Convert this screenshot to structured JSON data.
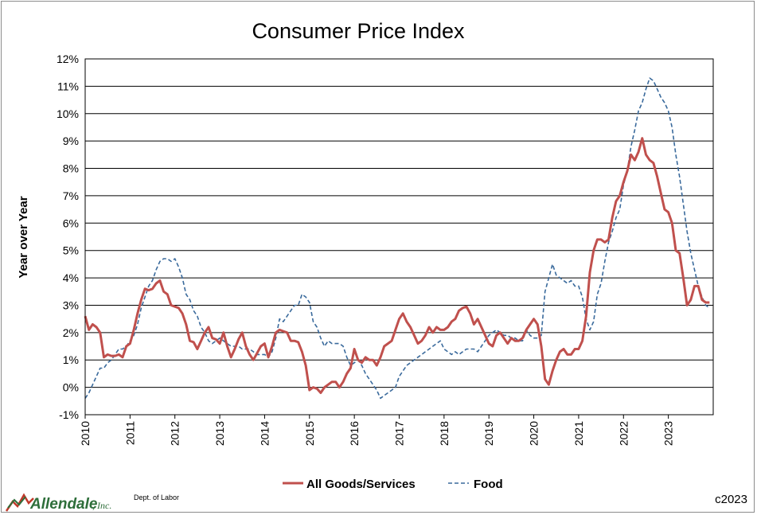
{
  "chart_data": {
    "type": "line",
    "title": "Consumer Price Index",
    "xlabel": "",
    "ylabel": "Year over Year",
    "ylim": [
      -1,
      12
    ],
    "y_ticks": [
      "-1%",
      "0%",
      "1%",
      "2%",
      "3%",
      "4%",
      "5%",
      "6%",
      "7%",
      "8%",
      "9%",
      "10%",
      "11%",
      "12%"
    ],
    "x_ticks": [
      "2010",
      "2011",
      "2012",
      "2013",
      "2014",
      "2015",
      "2016",
      "2017",
      "2018",
      "2019",
      "2020",
      "2021",
      "2022",
      "2023"
    ],
    "x_range": [
      2010.0,
      2024.0
    ],
    "grid": "horizontal",
    "legend": "bottom",
    "series": [
      {
        "name": "All Goods/Services",
        "style": "solid",
        "color": "#c0504d",
        "x_start": 2010.0,
        "x_step_months": 1,
        "values": [
          2.6,
          2.1,
          2.3,
          2.2,
          2.0,
          1.1,
          1.2,
          1.15,
          1.15,
          1.2,
          1.1,
          1.5,
          1.6,
          2.1,
          2.7,
          3.2,
          3.6,
          3.55,
          3.6,
          3.8,
          3.9,
          3.5,
          3.4,
          3.0,
          2.95,
          2.9,
          2.7,
          2.3,
          1.7,
          1.65,
          1.4,
          1.7,
          2.0,
          2.2,
          1.8,
          1.75,
          1.6,
          2.0,
          1.5,
          1.1,
          1.4,
          1.75,
          2.0,
          1.5,
          1.2,
          1.0,
          1.25,
          1.5,
          1.6,
          1.1,
          1.5,
          2.0,
          2.1,
          2.05,
          2.0,
          1.7,
          1.7,
          1.65,
          1.3,
          0.8,
          -0.1,
          0.0,
          -0.05,
          -0.2,
          0.0,
          0.1,
          0.2,
          0.2,
          0.0,
          0.2,
          0.5,
          0.7,
          1.4,
          1.0,
          0.9,
          1.1,
          1.0,
          1.0,
          0.8,
          1.1,
          1.5,
          1.6,
          1.7,
          2.1,
          2.5,
          2.7,
          2.4,
          2.2,
          1.9,
          1.6,
          1.7,
          1.9,
          2.2,
          2.0,
          2.2,
          2.1,
          2.1,
          2.2,
          2.4,
          2.5,
          2.8,
          2.9,
          2.95,
          2.7,
          2.3,
          2.5,
          2.2,
          1.9,
          1.6,
          1.5,
          1.9,
          2.0,
          1.8,
          1.6,
          1.8,
          1.7,
          1.7,
          1.8,
          2.1,
          2.3,
          2.5,
          2.3,
          1.5,
          0.3,
          0.1,
          0.6,
          1.0,
          1.3,
          1.4,
          1.2,
          1.2,
          1.4,
          1.4,
          1.7,
          2.6,
          4.2,
          5.0,
          5.4,
          5.4,
          5.3,
          5.4,
          6.2,
          6.8,
          7.0,
          7.5,
          7.9,
          8.5,
          8.3,
          8.6,
          9.1,
          8.5,
          8.3,
          8.2,
          7.7,
          7.1,
          6.5,
          6.4,
          6.0,
          5.0,
          4.9,
          4.0,
          3.0,
          3.2,
          3.7,
          3.7,
          3.2,
          3.1,
          3.1
        ]
      },
      {
        "name": "Food",
        "style": "dashed",
        "color": "#3a6a9c",
        "x_start": 2010.0,
        "x_step_months": 1,
        "values": [
          -0.4,
          -0.2,
          0.1,
          0.4,
          0.7,
          0.7,
          0.9,
          1.0,
          1.2,
          1.4,
          1.4,
          1.5,
          1.7,
          1.9,
          2.3,
          2.9,
          3.3,
          3.7,
          3.9,
          4.3,
          4.6,
          4.7,
          4.7,
          4.6,
          4.7,
          4.4,
          4.0,
          3.4,
          3.2,
          2.8,
          2.6,
          2.2,
          2.0,
          1.7,
          1.6,
          1.7,
          1.8,
          1.7,
          1.6,
          1.5,
          1.5,
          1.5,
          1.4,
          1.4,
          1.4,
          1.3,
          1.2,
          1.2,
          1.2,
          1.1,
          1.3,
          1.8,
          2.5,
          2.4,
          2.6,
          2.8,
          3.0,
          3.0,
          3.4,
          3.3,
          3.1,
          2.4,
          2.2,
          1.8,
          1.5,
          1.7,
          1.6,
          1.6,
          1.6,
          1.5,
          1.1,
          0.8,
          0.9,
          1.0,
          0.8,
          0.5,
          0.3,
          0.1,
          -0.1,
          -0.4,
          -0.3,
          -0.2,
          -0.1,
          0.0,
          0.4,
          0.6,
          0.8,
          0.9,
          1.0,
          1.1,
          1.2,
          1.3,
          1.4,
          1.5,
          1.6,
          1.7,
          1.4,
          1.3,
          1.2,
          1.3,
          1.2,
          1.3,
          1.4,
          1.4,
          1.4,
          1.3,
          1.5,
          1.7,
          1.9,
          2.0,
          2.1,
          2.0,
          1.9,
          1.9,
          1.8,
          1.8,
          1.7,
          1.7,
          2.1,
          1.9,
          1.8,
          1.8,
          1.9,
          3.5,
          4.0,
          4.5,
          4.1,
          4.0,
          3.9,
          3.8,
          3.9,
          3.7,
          3.7,
          3.3,
          2.5,
          2.1,
          2.4,
          3.4,
          3.8,
          4.6,
          5.3,
          5.7,
          6.2,
          6.5,
          7.4,
          7.9,
          8.8,
          9.4,
          10.1,
          10.4,
          10.9,
          11.3,
          11.2,
          10.9,
          10.6,
          10.4,
          10.1,
          9.5,
          8.5,
          7.7,
          6.7,
          5.7,
          4.9,
          4.3,
          3.7,
          3.3,
          3.0,
          2.9
        ]
      }
    ]
  },
  "footer": {
    "logo_name": "Allendale",
    "logo_suffix": ", Inc.",
    "source": "Dept. of Labor",
    "copyright": "c2023"
  }
}
